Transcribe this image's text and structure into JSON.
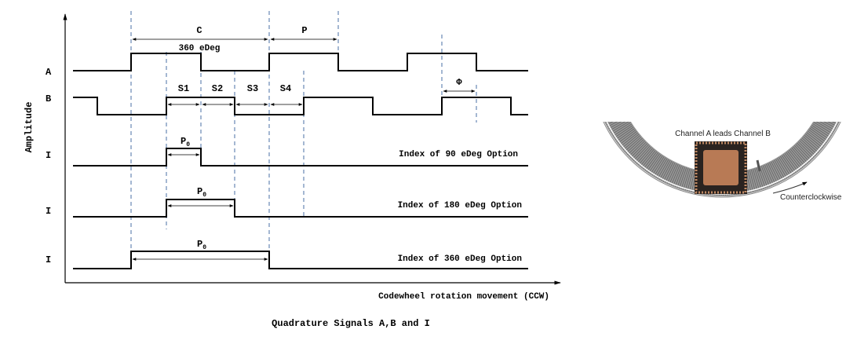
{
  "diagram": {
    "title": "Quadrature Signals A,B and I",
    "y_axis_label": "Amplitude",
    "x_axis_label": "Codewheel rotation movement (CCW)",
    "signal_labels": [
      "A",
      "B",
      "I",
      "I",
      "I"
    ],
    "dimension_labels": {
      "cycle": "C",
      "cycle_degrees": "360 eDeg",
      "pulse": "P",
      "states": [
        "S1",
        "S2",
        "S3",
        "S4"
      ],
      "phase": "Φ",
      "index_pulse": "P",
      "index_pulse_sub": "0"
    },
    "index_options": [
      "Index of 90 eDeg Option",
      "Index of 180 eDeg Option",
      "Index of 360 eDeg Option"
    ],
    "colors": {
      "signal": "#000000",
      "guide": "#4a6fa5",
      "chip": "#b87a55",
      "codewheel": "#8a8a8a"
    }
  },
  "illustration": {
    "caption_top": "Channel A leads Channel B",
    "caption_direction": "Counterclockwise"
  }
}
